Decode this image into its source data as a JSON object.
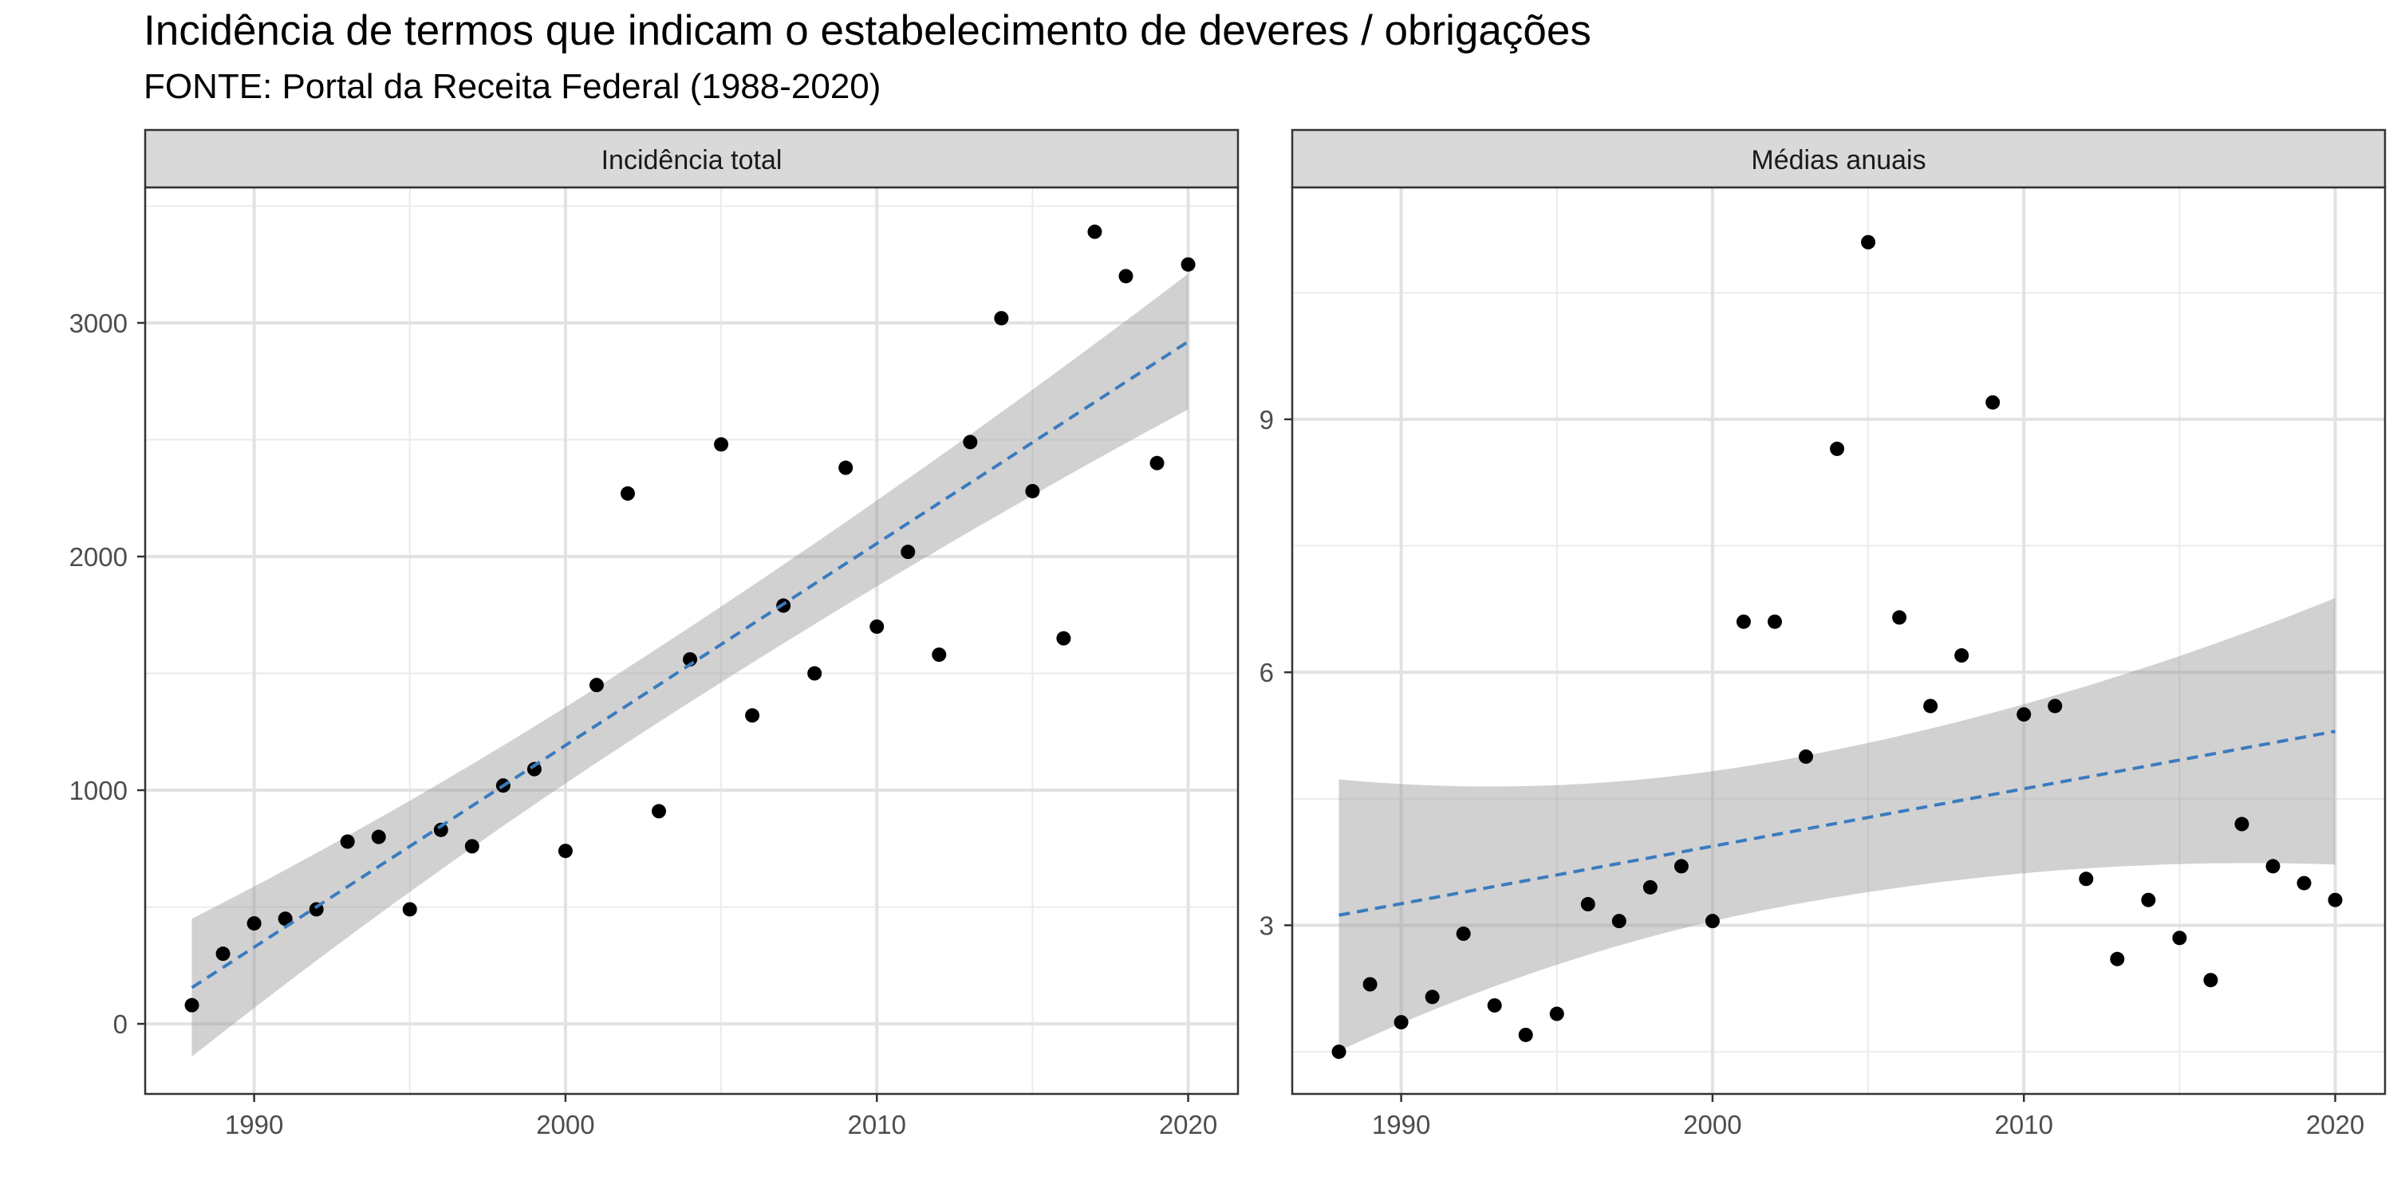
{
  "title": "Incidência de termos que indicam o estabelecimento de deveres / obrigações",
  "subtitle": "FONTE: Portal da Receita Federal (1988-2020)",
  "colors": {
    "point": "#000000",
    "trend": "#3a7bbf",
    "ribbon": "#999999",
    "strip": "#d9d9d9",
    "grid": "#ebebeb"
  },
  "chart_data": [
    {
      "type": "scatter",
      "panel": "Incidência total",
      "xlim": [
        1986.5,
        2021.6
      ],
      "ylim": [
        -300,
        3580
      ],
      "x_ticks": [
        1990,
        2000,
        2010,
        2020
      ],
      "y_ticks": [
        0,
        1000,
        2000,
        3000
      ],
      "grid": true,
      "x": [
        1988,
        1989,
        1990,
        1991,
        1992,
        1993,
        1994,
        1995,
        1996,
        1997,
        1998,
        1999,
        2000,
        2001,
        2002,
        2003,
        2004,
        2005,
        2006,
        2007,
        2008,
        2009,
        2010,
        2011,
        2012,
        2013,
        2014,
        2015,
        2016,
        2017,
        2018,
        2019,
        2020
      ],
      "y": [
        80,
        300,
        430,
        450,
        490,
        780,
        800,
        490,
        830,
        760,
        1020,
        1090,
        740,
        1450,
        2270,
        910,
        1560,
        2480,
        1320,
        1790,
        1500,
        2380,
        1700,
        2020,
        1580,
        2490,
        3020,
        2280,
        1650,
        3390,
        3200,
        2400,
        3250
      ],
      "trend": {
        "style": "dashed",
        "x": [
          1988,
          2020
        ],
        "fit": [
          155,
          2920
        ],
        "lower": [
          -130,
          2640
        ],
        "upper": [
          450,
          3210
        ]
      }
    },
    {
      "type": "scatter",
      "panel": "Médias anuais",
      "xlim": [
        1986.5,
        2021.6
      ],
      "ylim": [
        1.0,
        11.75
      ],
      "x_ticks": [
        1990,
        2000,
        2010,
        2020
      ],
      "y_ticks": [
        3,
        6,
        9
      ],
      "grid": true,
      "x": [
        1988,
        1989,
        1990,
        1991,
        1992,
        1993,
        1994,
        1995,
        1996,
        1997,
        1998,
        1999,
        2000,
        2001,
        2002,
        2003,
        2004,
        2005,
        2006,
        2007,
        2008,
        2009,
        2010,
        2011,
        2012,
        2013,
        2014,
        2015,
        2016,
        2017,
        2018,
        2019,
        2020
      ],
      "y": [
        1.5,
        2.3,
        1.85,
        2.15,
        2.9,
        2.05,
        1.7,
        1.95,
        3.25,
        3.05,
        3.45,
        3.7,
        3.05,
        6.6,
        6.6,
        5.0,
        8.65,
        11.1,
        6.65,
        5.6,
        6.2,
        9.2,
        5.5,
        5.6,
        3.55,
        2.6,
        3.3,
        2.85,
        2.35,
        4.2,
        3.7,
        3.5,
        3.3
      ],
      "trend": {
        "style": "dashed",
        "x": [
          1988,
          2020
        ],
        "fit": [
          3.12,
          5.3
        ],
        "lower": [
          1.6,
          3.72
        ],
        "upper": [
          4.73,
          6.88
        ]
      }
    }
  ]
}
